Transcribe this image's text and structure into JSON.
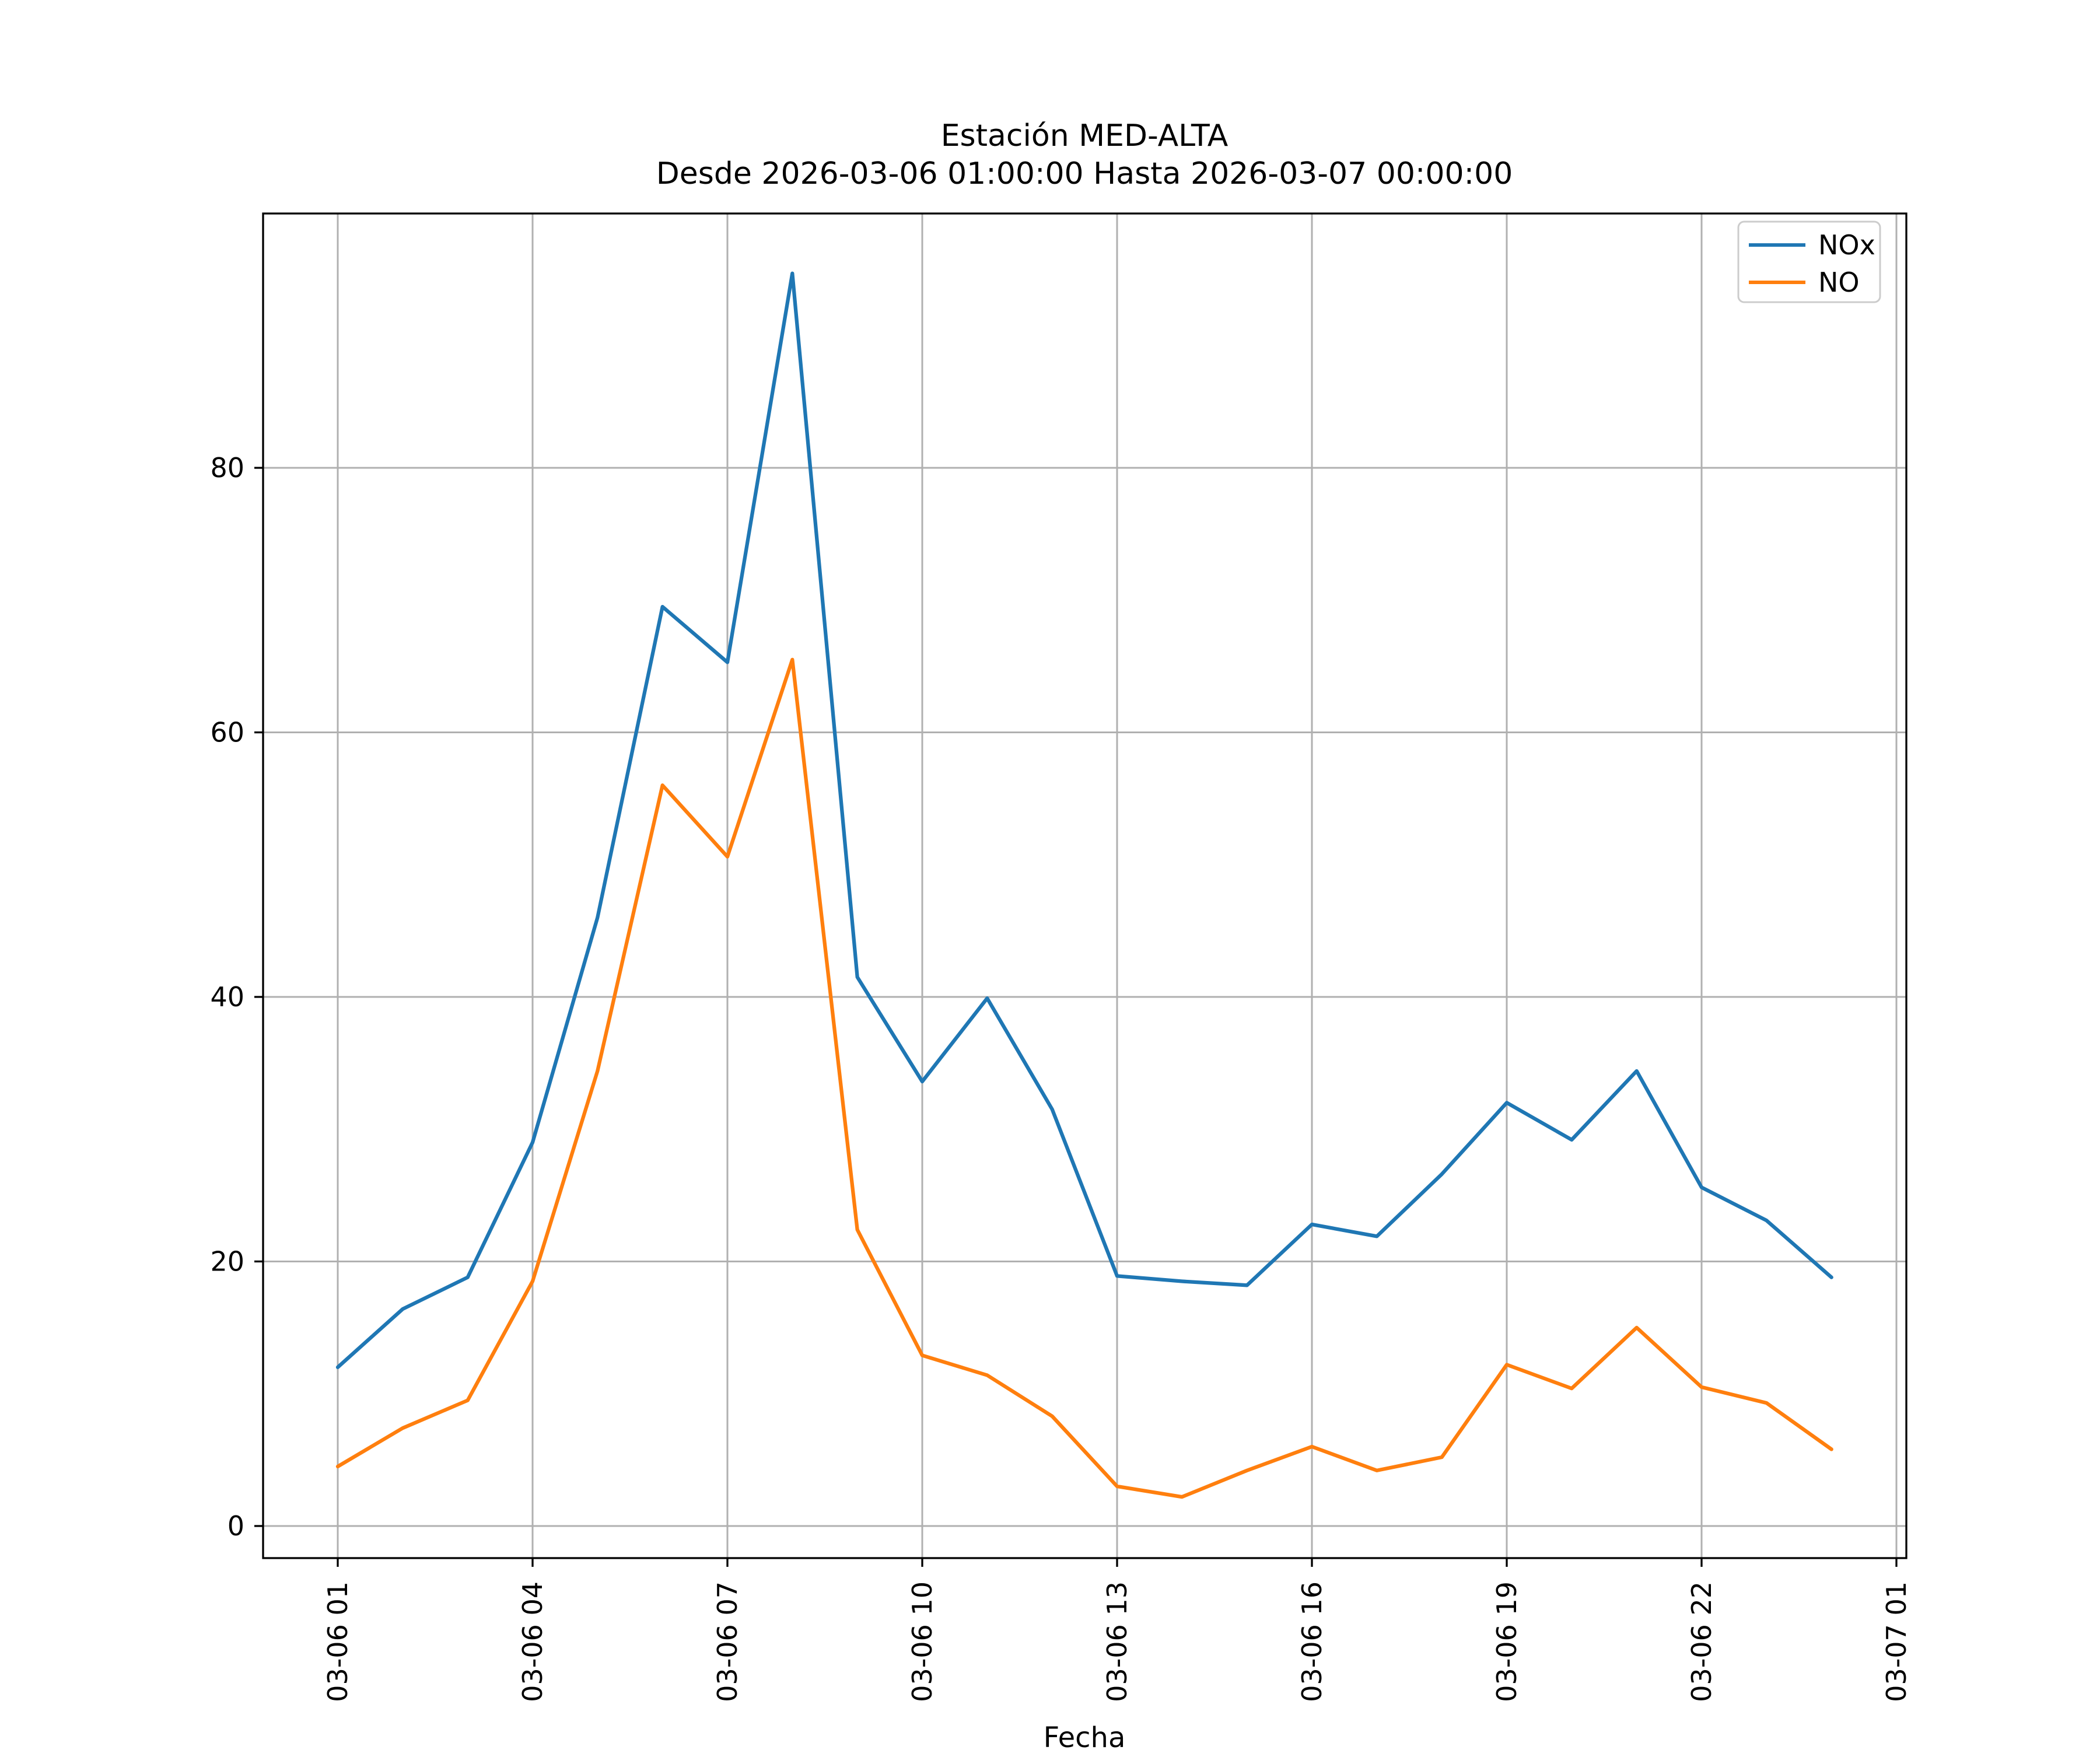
{
  "chart_data": {
    "type": "line",
    "title": "Estación MED-ALTA",
    "subtitle": "Desde 2026-03-06 01:00:00 Hasta 2026-03-07 00:00:00",
    "xlabel": "Fecha",
    "ylabel": "",
    "grid": true,
    "legend_position": "upper right",
    "background_color": "#ffffff",
    "gridline_color": "#b0b0b0",
    "x_start_hour": 1,
    "x_step_hours": 1,
    "x_ticks": {
      "hours": [
        1,
        4,
        7,
        10,
        13,
        16,
        19,
        22,
        25
      ],
      "labels": [
        "03-06 01",
        "03-06 04",
        "03-06 07",
        "03-06 10",
        "03-06 13",
        "03-06 16",
        "03-06 19",
        "03-06 22",
        "03-07 01"
      ]
    },
    "y_ticks": [
      0,
      20,
      40,
      60,
      80
    ],
    "ylim": [
      -2.4,
      99.1
    ],
    "xlim_hours": [
      -0.15,
      25.15
    ],
    "series": [
      {
        "name": "NOx",
        "color": "#1f77b4",
        "values": [
          12.0,
          16.4,
          18.8,
          29.0,
          46.0,
          69.5,
          65.3,
          94.7,
          41.5,
          33.6,
          39.9,
          31.5,
          18.9,
          18.5,
          18.2,
          22.8,
          21.9,
          26.6,
          32.0,
          29.2,
          34.4,
          25.6,
          23.1,
          18.8
        ]
      },
      {
        "name": "NO",
        "color": "#ff7f0e",
        "values": [
          4.5,
          7.4,
          9.5,
          18.5,
          34.4,
          56.0,
          50.6,
          65.5,
          22.4,
          12.9,
          11.4,
          8.3,
          3.0,
          2.2,
          4.2,
          6.0,
          4.2,
          5.2,
          12.2,
          10.4,
          15.0,
          10.5,
          9.3,
          5.8
        ]
      }
    ]
  }
}
